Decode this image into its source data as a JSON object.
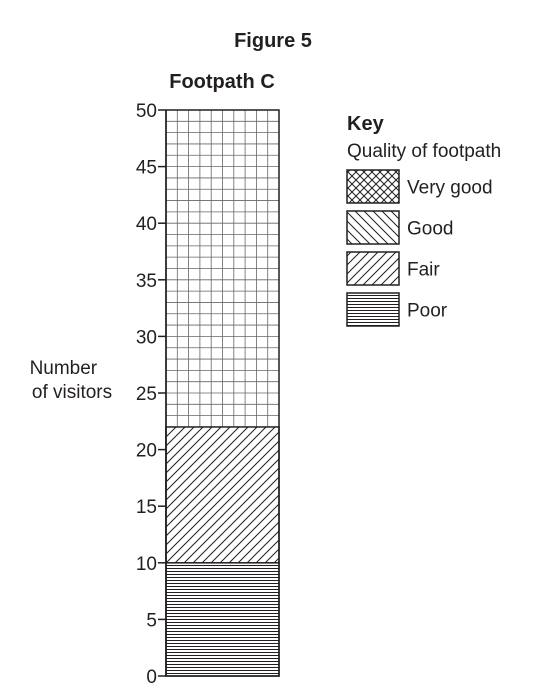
{
  "figure_title": "Figure 5",
  "chart_data": {
    "type": "bar",
    "title": "Footpath C",
    "ylabel": [
      "Number",
      "of visitors"
    ],
    "xlabel": "",
    "ylim": [
      0,
      50
    ],
    "y_ticks": [
      0,
      5,
      10,
      15,
      20,
      25,
      30,
      35,
      40,
      45,
      50
    ],
    "y_tick_labels": [
      "0",
      "5",
      "10",
      "15",
      "20",
      "25",
      "30",
      "35",
      "40",
      "45",
      "50"
    ],
    "categories": [
      "Footpath C"
    ],
    "stacked": true,
    "series": [
      {
        "name": "Poor",
        "values": [
          10
        ],
        "pattern": "horizontal-lines"
      },
      {
        "name": "Fair",
        "values": [
          12
        ],
        "pattern": "forward-diagonal"
      },
      {
        "name": "Good",
        "values": [
          0
        ],
        "pattern": "back-diagonal"
      },
      {
        "name": "Very good",
        "values": [
          0
        ],
        "pattern": "crosshatch"
      }
    ],
    "background_grid": true,
    "legend": {
      "title": "Key",
      "subtitle": "Quality of footpath",
      "placement": "right",
      "entries": [
        {
          "label": "Very good",
          "pattern": "crosshatch"
        },
        {
          "label": "Good",
          "pattern": "back-diagonal"
        },
        {
          "label": "Fair",
          "pattern": "forward-diagonal"
        },
        {
          "label": "Poor",
          "pattern": "horizontal-lines"
        }
      ]
    },
    "colors": {
      "ink": "#231f20",
      "grid": "#666666",
      "background": "#ffffff"
    }
  }
}
